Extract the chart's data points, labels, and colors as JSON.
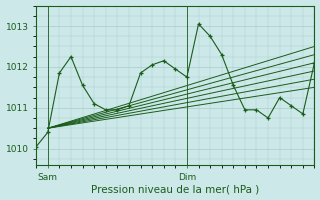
{
  "title": "Pression niveau de la mer( hPa )",
  "bg_color": "#cce8e8",
  "plot_bg": "#cce8e8",
  "grid_color": "#aacccc",
  "line_color": "#1a5c1a",
  "ylim": [
    1009.6,
    1013.5
  ],
  "yticks": [
    1010,
    1011,
    1012,
    1013
  ],
  "xlim": [
    0,
    48
  ],
  "x_sam": 2,
  "x_dim": 26,
  "main_series_x": [
    0,
    2,
    4,
    6,
    8,
    10,
    12,
    14,
    16,
    18,
    20,
    22,
    24,
    26,
    28,
    30,
    32,
    34,
    36,
    38,
    40,
    42,
    44,
    46,
    48
  ],
  "main_series_y": [
    1010.05,
    1010.4,
    1011.85,
    1012.25,
    1011.55,
    1011.1,
    1010.95,
    1010.95,
    1011.05,
    1011.85,
    1012.05,
    1012.15,
    1011.95,
    1011.75,
    1013.05,
    1012.75,
    1012.3,
    1011.55,
    1010.95,
    1010.95,
    1010.75,
    1011.25,
    1011.05,
    1010.85,
    1012.1
  ],
  "fan_lines": [
    {
      "x": [
        2,
        48
      ],
      "y": [
        1010.5,
        1011.5
      ]
    },
    {
      "x": [
        2,
        48
      ],
      "y": [
        1010.5,
        1011.7
      ]
    },
    {
      "x": [
        2,
        48
      ],
      "y": [
        1010.5,
        1011.9
      ]
    },
    {
      "x": [
        2,
        48
      ],
      "y": [
        1010.5,
        1012.1
      ]
    },
    {
      "x": [
        2,
        48
      ],
      "y": [
        1010.5,
        1012.3
      ]
    },
    {
      "x": [
        2,
        48
      ],
      "y": [
        1010.5,
        1012.5
      ]
    }
  ]
}
